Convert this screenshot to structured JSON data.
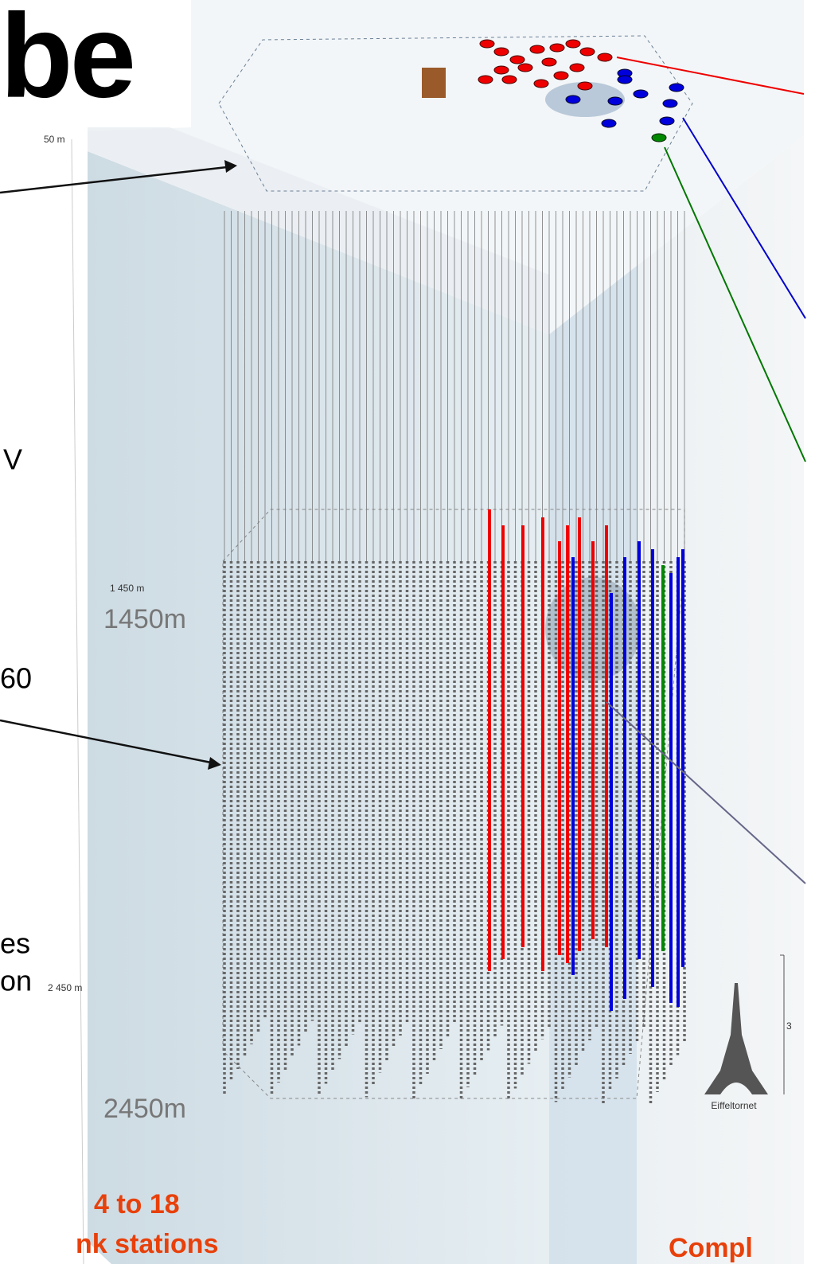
{
  "title": "be",
  "left_text": {
    "line1": "V",
    "line2": "60",
    "line3": "es",
    "line4": "on"
  },
  "depth_scale": {
    "top": "50 m",
    "middle": "1 450 m",
    "bottom": "2 450 m"
  },
  "depth_callouts": {
    "upper": "1450m",
    "lower": "2450m"
  },
  "footer_left": {
    "line1": "4 to 18",
    "line2": "nk stations"
  },
  "footer_right": "Compl",
  "eiffel": {
    "label": "Eiffeltornet",
    "height": "3"
  }
}
